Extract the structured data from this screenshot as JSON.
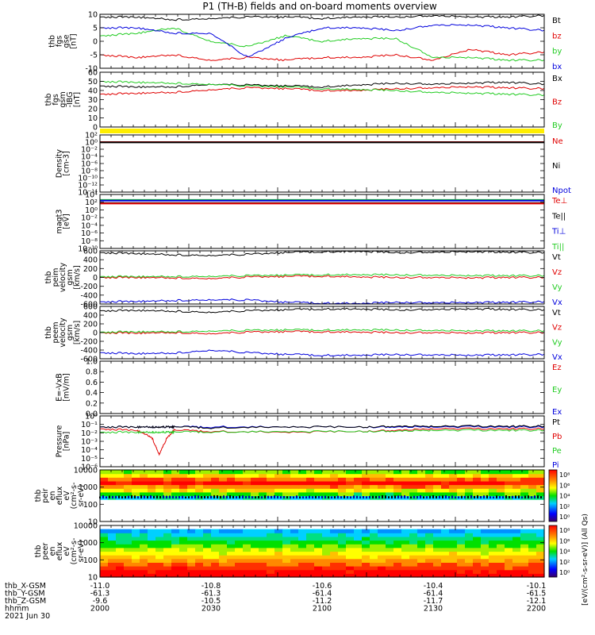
{
  "title": "P1 (TH-B) fields and on-board moments overview",
  "footer": {
    "rows": [
      {
        "label": "thb_X-GSM",
        "values": [
          "-11.0",
          "-10.8",
          "-10.6",
          "-10.4",
          "-10.1"
        ]
      },
      {
        "label": "thb_Y-GSM",
        "values": [
          "-61.3",
          "-61.3",
          "-61.4",
          "-61.4",
          "-61.5"
        ]
      },
      {
        "label": "thb_Z-GSM",
        "values": [
          "-9.6",
          "-10.5",
          "-11.2",
          "-11.7",
          "-12.1"
        ]
      },
      {
        "label": "hhmm",
        "values": [
          "2000",
          "2030",
          "2100",
          "2130",
          "2200"
        ]
      }
    ],
    "date": "2021 Jun 30"
  },
  "colors": {
    "black": "#000000",
    "red": "#e00000",
    "green": "#22cc22",
    "blue": "#0000dd",
    "yellow": "#ffee00"
  },
  "chart_data": [
    {
      "type": "line",
      "ylabel": [
        "thb",
        "fgs",
        "gse",
        "[nT]"
      ],
      "ylim": [
        -10,
        10
      ],
      "yticks": [
        "10",
        "5",
        "0",
        "-5",
        "-10"
      ],
      "legend": [
        {
          "name": "Bt",
          "color": "black"
        },
        {
          "name": "bz",
          "color": "red"
        },
        {
          "name": "by",
          "color": "green"
        },
        {
          "name": "bx",
          "color": "blue"
        }
      ],
      "x_hhmm": [
        2000,
        2010,
        2020,
        2030,
        2040,
        2050,
        2100,
        2110,
        2120,
        2130,
        2140,
        2150,
        2200
      ],
      "series": [
        {
          "name": "Bt",
          "color": "black",
          "values": [
            9,
            9,
            8,
            8.5,
            9,
            9,
            8.5,
            9,
            9,
            9.5,
            9,
            9,
            9.5
          ]
        },
        {
          "name": "bz",
          "color": "red",
          "values": [
            -5,
            -6,
            -5,
            -7,
            -6,
            -7,
            -6,
            -6,
            -5,
            -7,
            -3,
            -5,
            -4
          ]
        },
        {
          "name": "by",
          "color": "green",
          "values": [
            2,
            3,
            5,
            0,
            -2,
            2,
            0,
            1,
            1,
            -6,
            -6,
            -7,
            -7
          ]
        },
        {
          "name": "bx",
          "color": "blue",
          "values": [
            5,
            5,
            3,
            3,
            -6,
            1,
            5,
            5,
            4,
            6,
            6,
            5,
            4
          ]
        }
      ]
    },
    {
      "type": "line",
      "ylabel": [
        "thb",
        "fgs",
        "gsm",
        "-IBG",
        "[nT]"
      ],
      "ylim": [
        0,
        60
      ],
      "yticks": [
        "60",
        "50",
        "40",
        "30",
        "20",
        "10",
        "0"
      ],
      "legend": [
        {
          "name": "Bx",
          "color": "black"
        },
        {
          "name": "Bz",
          "color": "red"
        },
        {
          "name": "By",
          "color": "green"
        }
      ],
      "x_hhmm": [
        2000,
        2010,
        2020,
        2030,
        2040,
        2050,
        2100,
        2110,
        2120,
        2130,
        2140,
        2150,
        2200
      ],
      "series": [
        {
          "name": "Bx",
          "color": "black",
          "values": [
            45,
            44,
            44,
            47,
            46,
            45,
            44,
            46,
            48,
            47,
            48,
            49,
            47
          ]
        },
        {
          "name": "Bz",
          "color": "red",
          "values": [
            36,
            37,
            38,
            41,
            43,
            42,
            40,
            40,
            42,
            43,
            44,
            43,
            42
          ]
        },
        {
          "name": "By",
          "color": "green",
          "values": [
            50,
            49,
            48,
            47,
            45,
            44,
            42,
            41,
            40,
            38,
            37,
            36,
            35
          ]
        }
      ]
    },
    {
      "type": "line",
      "ylabel": [
        "Density",
        "[cm-3]"
      ],
      "scale": "log",
      "ylim": [
        1e-14,
        100
      ],
      "yticks": [
        "10²",
        "10⁰",
        "10⁻²",
        "10⁻⁴",
        "10⁻⁶",
        "10⁻⁸",
        "10⁻¹⁰",
        "10⁻¹²",
        "10⁻¹⁴"
      ],
      "legend": [
        {
          "name": "Ne",
          "color": "red"
        },
        {
          "name": "Ni",
          "color": "black"
        },
        {
          "name": "Npot",
          "color": "blue"
        }
      ],
      "x_hhmm": [
        2000,
        2200
      ],
      "series": [
        {
          "name": "Ne",
          "color": "red",
          "values": [
            1,
            1
          ]
        },
        {
          "name": "Ni",
          "color": "black",
          "values": [
            0.8,
            0.8
          ]
        }
      ]
    },
    {
      "type": "line",
      "ylabel": [
        "magt3",
        "[eV]"
      ],
      "scale": "log",
      "ylim": [
        1e-10,
        100000
      ],
      "yticks": [
        "10⁴",
        "10²",
        "10⁰",
        "10⁻²",
        "10⁻⁴",
        "10⁻⁶",
        "10⁻⁸",
        "10⁻¹⁰"
      ],
      "legend": [
        {
          "name": "Te⊥",
          "color": "red"
        },
        {
          "name": "Te||",
          "color": "black"
        },
        {
          "name": "Ti⊥",
          "color": "blue"
        },
        {
          "name": "Ti||",
          "color": "green"
        }
      ],
      "x_hhmm": [
        2000,
        2200
      ],
      "series": [
        {
          "name": "Ti||",
          "color": "green",
          "values": [
            3000,
            3000
          ]
        },
        {
          "name": "Ti⊥",
          "color": "blue",
          "values": [
            2000,
            2000
          ]
        },
        {
          "name": "Te||",
          "color": "black",
          "values": [
            400,
            400
          ]
        },
        {
          "name": "Te⊥",
          "color": "red",
          "values": [
            300,
            300
          ]
        }
      ]
    },
    {
      "type": "line",
      "ylabel": [
        "thb",
        "peim",
        "velocity",
        "gsm",
        "[km/s]"
      ],
      "ylim": [
        -600,
        600
      ],
      "yticks": [
        "600",
        "400",
        "200",
        "0",
        "-200",
        "-400",
        "-600"
      ],
      "legend": [
        {
          "name": "Vt",
          "color": "black"
        },
        {
          "name": "Vz",
          "color": "red"
        },
        {
          "name": "Vy",
          "color": "green"
        },
        {
          "name": "Vx",
          "color": "blue"
        }
      ],
      "x_hhmm": [
        2000,
        2010,
        2020,
        2030,
        2040,
        2050,
        2100,
        2110,
        2120,
        2130,
        2140,
        2150,
        2200
      ],
      "series": [
        {
          "name": "Vt",
          "color": "black",
          "values": [
            560,
            540,
            510,
            500,
            520,
            560,
            580,
            590,
            560,
            570,
            580,
            570,
            560
          ]
        },
        {
          "name": "Vz",
          "color": "red",
          "values": [
            0,
            0,
            -10,
            -20,
            10,
            20,
            30,
            10,
            0,
            0,
            -10,
            0,
            0
          ]
        },
        {
          "name": "Vy",
          "color": "green",
          "values": [
            20,
            20,
            20,
            30,
            40,
            50,
            60,
            60,
            60,
            50,
            40,
            40,
            40
          ]
        },
        {
          "name": "Vx",
          "color": "blue",
          "values": [
            -550,
            -540,
            -520,
            -500,
            -510,
            -560,
            -580,
            -590,
            -560,
            -570,
            -570,
            -560,
            -550
          ]
        }
      ]
    },
    {
      "type": "line",
      "ylabel": [
        "thb",
        "peem",
        "velocity",
        "gsm",
        "[km/s]"
      ],
      "ylim": [
        -600,
        600
      ],
      "yticks": [
        "600",
        "400",
        "200",
        "0",
        "-200",
        "-400",
        "-600"
      ],
      "legend": [
        {
          "name": "Vt",
          "color": "black"
        },
        {
          "name": "Vz",
          "color": "red"
        },
        {
          "name": "Vy",
          "color": "green"
        },
        {
          "name": "Vx",
          "color": "blue"
        }
      ],
      "x_hhmm": [
        2000,
        2010,
        2020,
        2030,
        2040,
        2050,
        2100,
        2110,
        2120,
        2130,
        2140,
        2150,
        2200
      ],
      "series": [
        {
          "name": "Vt",
          "color": "black",
          "values": [
            500,
            510,
            490,
            470,
            500,
            520,
            540,
            540,
            520,
            530,
            540,
            530,
            520
          ]
        },
        {
          "name": "Vz",
          "color": "red",
          "values": [
            0,
            -10,
            0,
            -20,
            10,
            20,
            20,
            10,
            0,
            0,
            -10,
            0,
            0
          ]
        },
        {
          "name": "Vy",
          "color": "green",
          "values": [
            10,
            20,
            20,
            40,
            50,
            60,
            60,
            60,
            60,
            50,
            40,
            40,
            40
          ]
        },
        {
          "name": "Vx",
          "color": "blue",
          "values": [
            -460,
            -480,
            -470,
            -400,
            -460,
            -500,
            -520,
            -520,
            -500,
            -510,
            -520,
            -510,
            -500
          ]
        }
      ]
    },
    {
      "type": "line",
      "ylabel": [
        "E=-VxB",
        "[mV/m]"
      ],
      "ylim": [
        0,
        1
      ],
      "yticks": [
        "1.0",
        "0.8",
        "0.6",
        "0.4",
        "0.2",
        "0.0"
      ],
      "legend": [
        {
          "name": "Ez",
          "color": "red"
        },
        {
          "name": "Ey",
          "color": "green"
        },
        {
          "name": "Ex",
          "color": "blue"
        }
      ],
      "x_hhmm": [],
      "series": []
    },
    {
      "type": "line",
      "ylabel": [
        "Pressure",
        "[nPa]"
      ],
      "scale": "log",
      "ylim": [
        1e-06,
        1
      ],
      "yticks": [
        "10⁰",
        "10⁻¹",
        "10⁻²",
        "10⁻³",
        "10⁻⁴",
        "10⁻⁵",
        "10⁻⁶"
      ],
      "legend": [
        {
          "name": "Pt",
          "color": "black"
        },
        {
          "name": "Pb",
          "color": "red"
        },
        {
          "name": "Pe",
          "color": "green"
        },
        {
          "name": "Pi",
          "color": "blue"
        }
      ],
      "x_hhmm": [
        2000,
        2010,
        2014,
        2016,
        2018,
        2020,
        2030,
        2050,
        2110,
        2120,
        2130,
        2150,
        2200
      ],
      "series": [
        {
          "name": "Pi",
          "color": "blue",
          "values": [
            0.05,
            0.05,
            0.05,
            0.05,
            0.05,
            0.05,
            0.05,
            0.05,
            0.05,
            0.05,
            0.05,
            0.05,
            0.05
          ]
        },
        {
          "name": "Pt",
          "color": "black",
          "values": [
            0.05,
            0.05,
            0.05,
            0.05,
            0.05,
            0.05,
            0.04,
            0.05,
            0.05,
            0.06,
            0.06,
            0.06,
            0.06
          ]
        },
        {
          "name": "Pb",
          "color": "red",
          "values": [
            0.03,
            0.02,
            0.003,
            3e-05,
            0.002,
            0.02,
            0.015,
            0.012,
            0.015,
            0.02,
            0.03,
            0.03,
            0.03
          ]
        },
        {
          "name": "Pe",
          "color": "green",
          "values": [
            0.012,
            0.012,
            0.012,
            0.012,
            0.012,
            0.012,
            0.013,
            0.014,
            0.015,
            0.016,
            0.02,
            0.02,
            0.02
          ]
        }
      ]
    },
    {
      "type": "heatmap",
      "ylabel": [
        "thb",
        "peir",
        "en",
        "eflux",
        "eV",
        "(cm²-s-",
        "sr-eV)"
      ],
      "scale": "log",
      "ylim": [
        5,
        10000
      ],
      "yticks": [
        "10000",
        "1000",
        "100",
        "10"
      ],
      "colorbar": {
        "min_exp": 3,
        "max_exp": 8,
        "ticks": [
          "10⁸",
          "10⁶",
          "10⁴",
          "10²",
          "10⁰"
        ]
      }
    },
    {
      "type": "heatmap",
      "ylabel": [
        "thb",
        "peer",
        "en",
        "eflux",
        "eV",
        "(cm²-s-",
        "sr-eV)"
      ],
      "scale": "log",
      "ylim": [
        5,
        10000
      ],
      "yticks": [
        "10000",
        "1000",
        "100",
        "10"
      ],
      "colorbar": {
        "min_exp": 3,
        "max_exp": 8,
        "ticks": [
          "10⁸",
          "10⁶",
          "10⁴",
          "10²",
          "10⁰"
        ]
      }
    }
  ],
  "colorbar_label": "[eV/(cm²-s-sr-eV)] (All Qs)"
}
